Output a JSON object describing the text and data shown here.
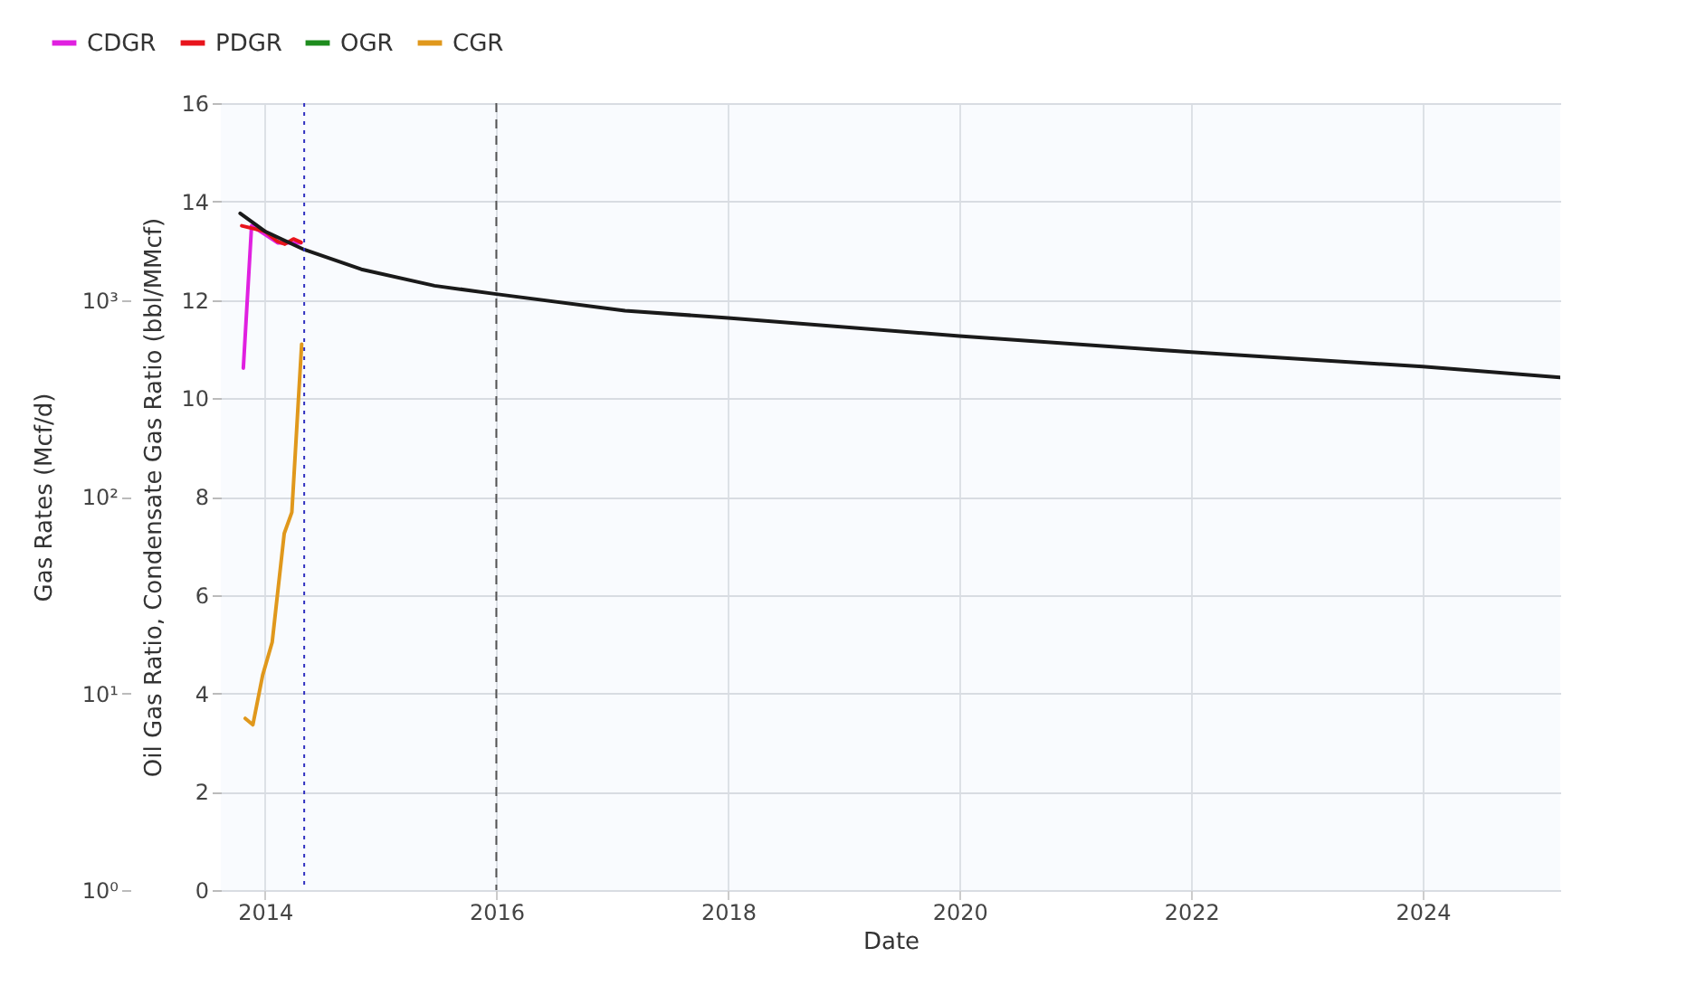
{
  "chart_data": {
    "type": "line",
    "xlabel": "Date",
    "ylabel": "Oil Gas Ratio, Condensate Gas Ratio (bbl/MMcf)",
    "y2label": "Gas Rates (Mcf/d)",
    "xlim": [
      "2013-08-15",
      "2025-03-10"
    ],
    "xticks": [
      "2014",
      "2016",
      "2018",
      "2020",
      "2022",
      "2024"
    ],
    "ylim": [
      0,
      16
    ],
    "yticks": [
      0,
      2,
      4,
      6,
      8,
      10,
      12,
      14,
      16
    ],
    "y2lim": [
      1,
      10000
    ],
    "y2ticks": [
      {
        "value": 1,
        "label": "10⁰"
      },
      {
        "value": 10,
        "label": "10¹"
      },
      {
        "value": 100,
        "label": "10²"
      },
      {
        "value": 1000,
        "label": "10³"
      }
    ],
    "log": "y2",
    "grid": true,
    "legend": "top left",
    "line_style": "solid",
    "series": [
      {
        "name": "CDGR",
        "color": "#e020e0",
        "axis": "y2",
        "x": [
          "2013-10-25",
          "2013-11-20",
          "2014-01-01",
          "2014-02-10",
          "2014-04-25"
        ],
        "values": [
          450,
          2380,
          2150,
          1950,
          1950
        ]
      },
      {
        "name": "PDGR",
        "color": "#e8141c",
        "axis": "y2",
        "x": [
          "2013-10-20",
          "2014-01-01",
          "2014-02-10",
          "2014-03-05",
          "2014-04-01",
          "2014-04-25"
        ],
        "values": [
          2380,
          2230,
          1980,
          1920,
          2040,
          1960
        ]
      },
      {
        "name": "OGR",
        "color": "#1e8c1e",
        "axis": "y"
      },
      {
        "name": "CGR",
        "color": "#e0981c",
        "axis": "y",
        "x": [
          "2013-10-31",
          "2013-11-24",
          "2013-12-25",
          "2014-01-24",
          "2014-03-03",
          "2014-03-27",
          "2014-04-27"
        ],
        "values": [
          3.49,
          3.36,
          4.37,
          5.04,
          7.25,
          7.68,
          11.1
        ]
      },
      {
        "color": "#1a1a1a",
        "axis": "y2",
        "x": [
          "2013-10-15",
          "2014-01-01",
          "2014-05-05",
          "2014-11-01",
          "2015-06-20",
          "2016-01-01",
          "2017-02-10",
          "2018-01-01",
          "2020-01-01",
          "2022-01-01",
          "2024-01-01",
          "2025-03-10"
        ],
        "values": [
          2750,
          2230,
          1800,
          1430,
          1180,
          1070,
          880,
          810,
          655,
          542,
          458,
          403
        ]
      }
    ],
    "ref_lines": [
      {
        "axis": "x",
        "value": "2014-05-05",
        "color": "#3030c0",
        "line_style": "dotted"
      },
      {
        "axis": "x",
        "value": "2016-01-01",
        "color": "#555555",
        "line_style": "dashed"
      }
    ]
  }
}
